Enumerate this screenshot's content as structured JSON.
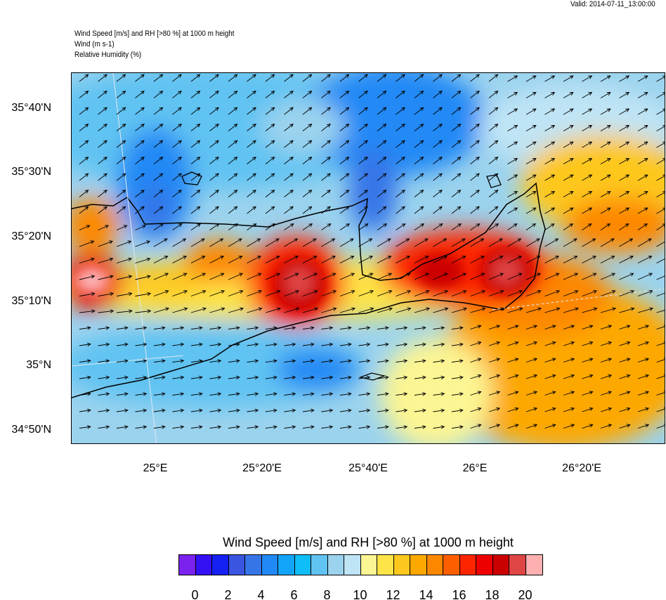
{
  "valid_time": "Valid: 2014-07-11_13:00:00",
  "header": {
    "line1": "Wind Speed [m/s] and RH [>80 %] at 1000 m height",
    "line2": "Wind   (m s-1)",
    "line3": "Relative Humidity   (%)"
  },
  "axes": {
    "lat_labels": [
      "35°40'N",
      "35°30'N",
      "35°20'N",
      "35°10'N",
      "35°N",
      "34°50'N"
    ],
    "lon_labels": [
      "25°E",
      "25°20'E",
      "25°40'E",
      "26°E",
      "26°20'E"
    ]
  },
  "colorbar": {
    "title": "Wind Speed [m/s] and RH [>80 %] at 1000 m height",
    "labels": [
      "0",
      "2",
      "4",
      "6",
      "8",
      "10",
      "12",
      "14",
      "16",
      "18",
      "20"
    ],
    "colors": [
      "#7b22ee",
      "#3410f5",
      "#1520f2",
      "#3a55e0",
      "#3675e8",
      "#2189f5",
      "#12a4f8",
      "#0fbdf8",
      "#60c3f2",
      "#9bd3ee",
      "#bfe4f5",
      "#fcf593",
      "#fde447",
      "#fdc71d",
      "#fda800",
      "#fd8800",
      "#fd5f00",
      "#fd2500",
      "#ef0000",
      "#cb0000",
      "#df4545",
      "#fcb0b0"
    ]
  }
}
